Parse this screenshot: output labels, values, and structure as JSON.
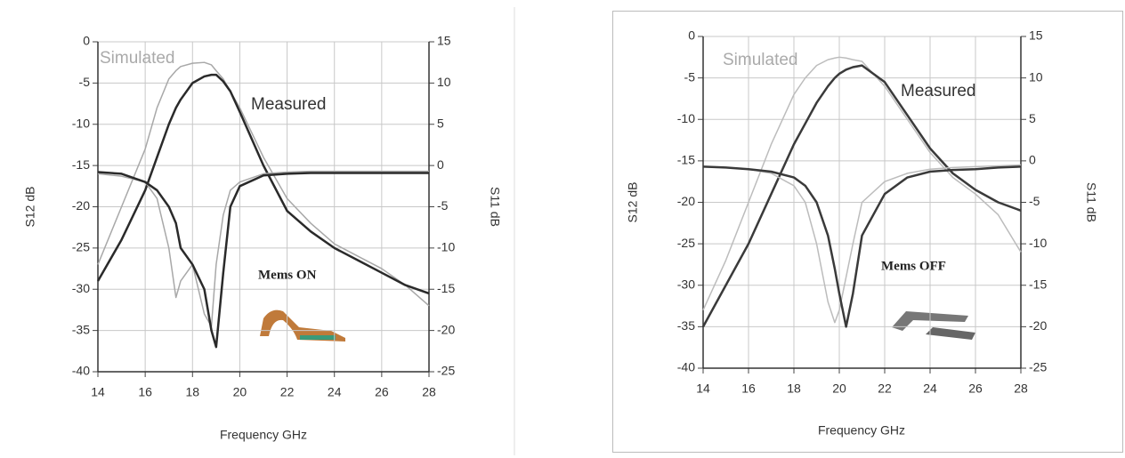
{
  "chart_data": [
    {
      "type": "line",
      "xlabel": "Frequency GHz",
      "ylabel": "S12 dB",
      "y2label": "S11 dB",
      "annotations": [
        "Simulated",
        "Measured",
        "Mems ON"
      ],
      "x": [
        14,
        15,
        16,
        16.5,
        17,
        17.3,
        17.5,
        18,
        18.5,
        18.8,
        19,
        19.3,
        19.6,
        20,
        21,
        22,
        23,
        24,
        25,
        26,
        27,
        28
      ],
      "series": [
        {
          "color": "#a8a8a8",
          "width": 1.5,
          "values": [
            -27,
            -20,
            -13,
            -8,
            -4.5,
            -3.5,
            -3,
            -2.6,
            -2.5,
            -2.8,
            -3.5,
            -4.5,
            -6,
            -8,
            -14,
            -19,
            -22,
            -24.5,
            -26,
            -27.5,
            -29.5,
            -32
          ]
        },
        {
          "color": "#2a2a2a",
          "width": 2.5,
          "values": [
            -29,
            -24,
            -18,
            -14,
            -10,
            -8,
            -7,
            -5,
            -4.2,
            -4,
            -4,
            -4.8,
            -6,
            -8.5,
            -15,
            -20.5,
            -23,
            -25,
            -26.5,
            -28,
            -29.5,
            -30.5
          ]
        },
        {
          "color": "#a8a8a8",
          "width": 1.5,
          "axis": "y2",
          "values": [
            -1,
            -1.3,
            -2,
            -4,
            -10,
            -16,
            -14,
            -12,
            -18,
            -19.5,
            -12,
            -6,
            -3,
            -2,
            -1,
            -0.8,
            -0.7,
            -0.7,
            -0.7,
            -0.7,
            -0.7,
            -0.7
          ]
        },
        {
          "color": "#2a2a2a",
          "width": 2.5,
          "axis": "y2",
          "values": [
            -0.8,
            -1,
            -2,
            -3,
            -5,
            -7,
            -10,
            -12,
            -15,
            -20,
            -22,
            -13,
            -5,
            -2.5,
            -1.2,
            -1,
            -0.9,
            -0.9,
            -0.9,
            -0.9,
            -0.9,
            -0.9
          ]
        }
      ],
      "xlim": [
        14,
        28
      ],
      "xticks": [
        14,
        16,
        18,
        20,
        22,
        24,
        26,
        28
      ],
      "ylim": [
        -40,
        0
      ],
      "yticks": [
        0,
        -5,
        -10,
        -15,
        -20,
        -25,
        -30,
        -35,
        -40
      ],
      "y2lim": [
        -25,
        15
      ],
      "y2ticks": [
        15,
        10,
        5,
        0,
        -5,
        -10,
        -15,
        -20,
        -25
      ],
      "grid": true
    },
    {
      "type": "line",
      "xlabel": "Frequency GHz",
      "ylabel": "S12 dB",
      "y2label": "S11 dB",
      "annotations": [
        "Simulated",
        "Measured",
        "Mems OFF"
      ],
      "x": [
        14,
        15,
        16,
        17,
        18,
        18.5,
        19,
        19.5,
        19.8,
        20,
        20.3,
        20.6,
        21,
        22,
        23,
        24,
        25,
        26,
        27,
        28
      ],
      "series": [
        {
          "color": "#bcbcbc",
          "width": 1.5,
          "values": [
            -33,
            -27,
            -20,
            -13,
            -7,
            -5,
            -3.5,
            -2.8,
            -2.6,
            -2.5,
            -2.6,
            -2.8,
            -3,
            -6,
            -10,
            -14,
            -17,
            -19,
            -21.5,
            -26
          ]
        },
        {
          "color": "#3a3a3a",
          "width": 2.5,
          "values": [
            -35,
            -30,
            -25,
            -19,
            -13,
            -10.5,
            -8,
            -6,
            -5,
            -4.5,
            -4,
            -3.7,
            -3.5,
            -5.5,
            -9.5,
            -13.5,
            -16.5,
            -18.5,
            -20,
            -21
          ]
        },
        {
          "color": "#bcbcbc",
          "width": 1.5,
          "axis": "y2",
          "values": [
            -0.7,
            -0.8,
            -1,
            -1.5,
            -3,
            -5,
            -10,
            -17,
            -19.5,
            -18,
            -14,
            -10,
            -5,
            -2.5,
            -1.5,
            -1,
            -0.8,
            -0.7,
            -0.6,
            -0.5
          ]
        },
        {
          "color": "#3a3a3a",
          "width": 2.5,
          "axis": "y2",
          "values": [
            -0.7,
            -0.8,
            -1,
            -1.3,
            -2,
            -3,
            -5,
            -9,
            -13,
            -16,
            -20,
            -16,
            -9,
            -4,
            -2,
            -1.3,
            -1.1,
            -1,
            -0.8,
            -0.7
          ]
        }
      ],
      "xlim": [
        14,
        28
      ],
      "xticks": [
        14,
        16,
        18,
        20,
        22,
        24,
        26,
        28
      ],
      "ylim": [
        -40,
        0
      ],
      "yticks": [
        0,
        -5,
        -10,
        -15,
        -20,
        -25,
        -30,
        -35,
        -40
      ],
      "y2lim": [
        -25,
        15
      ],
      "y2ticks": [
        15,
        10,
        5,
        0,
        -5,
        -10,
        -15,
        -20,
        -25
      ],
      "grid": true
    }
  ]
}
